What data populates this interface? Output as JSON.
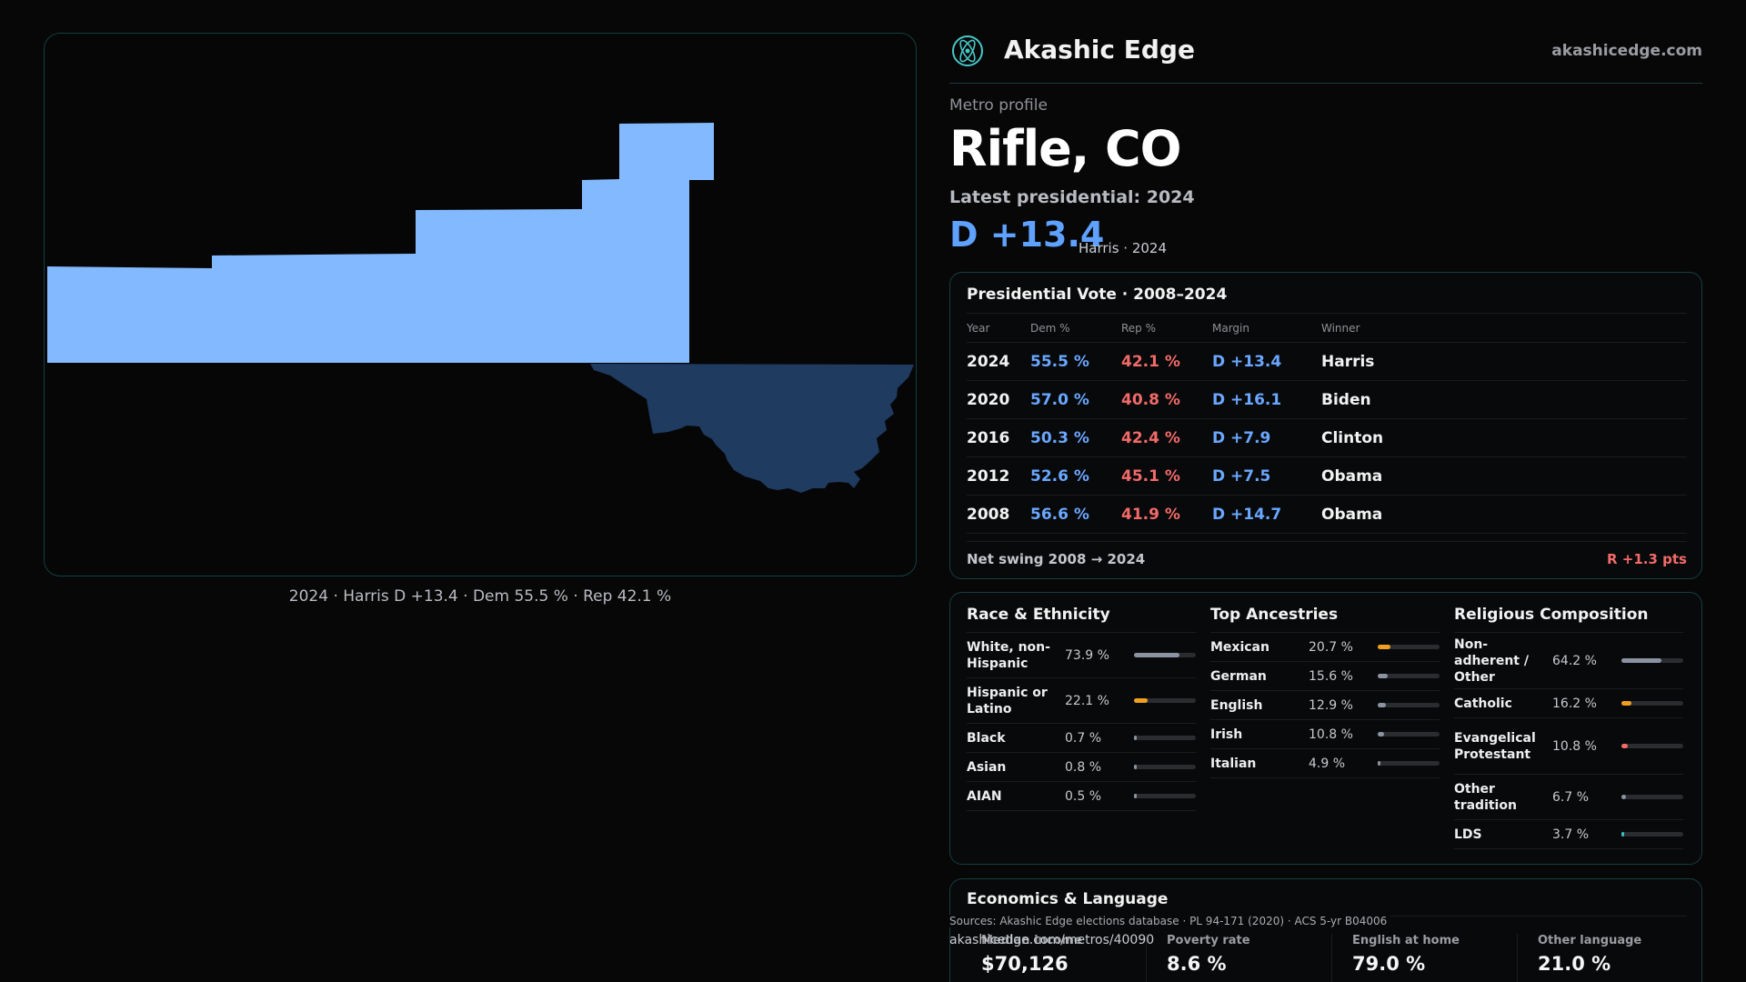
{
  "map": {
    "caption": "2024 · Harris D +13.4 · Dem 55.5 % · Rep 42.1 %",
    "primary_color": "#83b9ff",
    "secondary_color": "#1f3b60"
  },
  "brand": {
    "logo_icon": "atom-icon",
    "name": "Akashic Edge",
    "url": "akashicedge.com"
  },
  "header": {
    "kicker": "Metro profile",
    "city": "Rifle, CO",
    "latest": "Latest presidential: 2024",
    "margin": "D +13.4",
    "margin_sub": "Harris · 2024"
  },
  "vote": {
    "title": "Presidential Vote · 2008–2024",
    "headers": {
      "year": "Year",
      "dem": "Dem %",
      "rep": "Rep %",
      "margin": "Margin",
      "winner": "Winner"
    },
    "rows": [
      {
        "year": "2024",
        "dem": "55.5 %",
        "rep": "42.1 %",
        "margin": "D +13.4",
        "winner": "Harris"
      },
      {
        "year": "2020",
        "dem": "57.0 %",
        "rep": "40.8 %",
        "margin": "D +16.1",
        "winner": "Biden"
      },
      {
        "year": "2016",
        "dem": "50.3 %",
        "rep": "42.4 %",
        "margin": "D +7.9",
        "winner": "Clinton"
      },
      {
        "year": "2012",
        "dem": "52.6 %",
        "rep": "45.1 %",
        "margin": "D +7.5",
        "winner": "Obama"
      },
      {
        "year": "2008",
        "dem": "56.6 %",
        "rep": "41.9 %",
        "margin": "D +14.7",
        "winner": "Obama"
      }
    ],
    "swing_label": "Net swing 2008 → 2024",
    "swing_value": "R +1.3 pts"
  },
  "race": {
    "title": "Race & Ethnicity",
    "items": [
      {
        "label": "White, non-Hispanic",
        "value": "73.9 %",
        "pct": 73.9,
        "color": "#8b93a2"
      },
      {
        "label": "Hispanic or Latino",
        "value": "22.1 %",
        "pct": 22.1,
        "color": "#f0a020"
      },
      {
        "label": "Black",
        "value": "0.7 %",
        "pct": 0.7,
        "color": "#8b93a2"
      },
      {
        "label": "Asian",
        "value": "0.8 %",
        "pct": 0.8,
        "color": "#8b93a2"
      },
      {
        "label": "AIAN",
        "value": "0.5 %",
        "pct": 0.5,
        "color": "#8b93a2"
      }
    ]
  },
  "ancestry": {
    "title": "Top Ancestries",
    "items": [
      {
        "label": "Mexican",
        "value": "20.7 %",
        "pct": 20.7,
        "color": "#f0a020"
      },
      {
        "label": "German",
        "value": "15.6 %",
        "pct": 15.6,
        "color": "#8b93a2"
      },
      {
        "label": "English",
        "value": "12.9 %",
        "pct": 12.9,
        "color": "#8b93a2"
      },
      {
        "label": "Irish",
        "value": "10.8 %",
        "pct": 10.8,
        "color": "#8b93a2"
      },
      {
        "label": "Italian",
        "value": "4.9 %",
        "pct": 4.9,
        "color": "#8b93a2"
      }
    ]
  },
  "religion": {
    "title": "Religious Composition",
    "items": [
      {
        "label": "Non-adherent / Other",
        "value": "64.2 %",
        "pct": 64.2,
        "color": "#8b93a2"
      },
      {
        "label": "Catholic",
        "value": "16.2 %",
        "pct": 16.2,
        "color": "#f0a020"
      },
      {
        "label": "Evangelical Protestant",
        "value": "10.8 %",
        "pct": 10.8,
        "color": "#f26a6a"
      },
      {
        "label": "Other tradition",
        "value": "6.7 %",
        "pct": 6.7,
        "color": "#8b93a2"
      },
      {
        "label": "LDS",
        "value": "3.7 %",
        "pct": 3.7,
        "color": "#35c2c2"
      }
    ]
  },
  "economics": {
    "title": "Economics & Language",
    "cells": [
      {
        "label": "Median income",
        "value": "$70,126"
      },
      {
        "label": "Poverty rate",
        "value": "8.6 %"
      },
      {
        "label": "English at home",
        "value": "79.0 %"
      },
      {
        "label": "Other language",
        "value": "21.0 %"
      }
    ]
  },
  "footer": {
    "sources": "Sources: Akashic Edge elections database · PL 94-171 (2020) · ACS 5-yr B04006",
    "url": "akashicedge.com/metros/40090"
  }
}
